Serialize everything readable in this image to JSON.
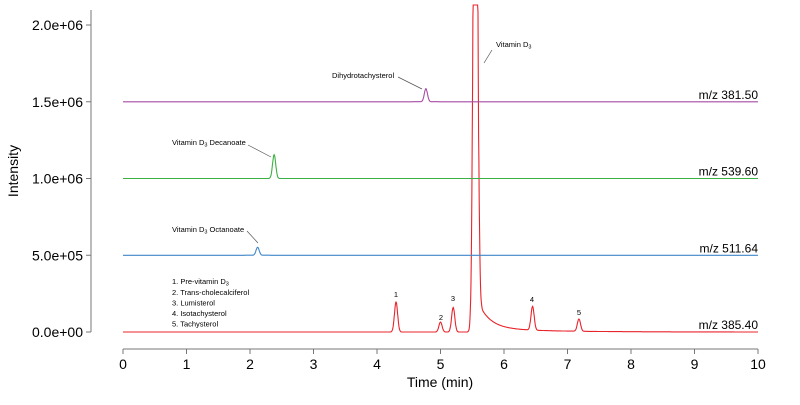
{
  "chart_data": {
    "type": "line",
    "xlabel": "Time (min)",
    "ylabel": "Intensity",
    "xlim": [
      0,
      10
    ],
    "ylim": [
      0,
      2100000
    ],
    "x_ticks": [
      "0",
      "1",
      "2",
      "3",
      "4",
      "5",
      "6",
      "7",
      "8",
      "9",
      "10"
    ],
    "y_ticks": [
      {
        "value": 0,
        "label": "0.0e+00"
      },
      {
        "value": 500000,
        "label": "5.0e+05"
      },
      {
        "value": 1000000,
        "label": "1.0e+06"
      },
      {
        "value": 1500000,
        "label": "1.5e+06"
      },
      {
        "value": 2000000,
        "label": "2.0e+06"
      }
    ],
    "grid": false,
    "series": [
      {
        "name": "m/z 385.40",
        "color": "#e8242b",
        "baseline": 0,
        "peaks": [
          {
            "rt": 4.3,
            "height": 195000,
            "label": "1"
          },
          {
            "rt": 5.0,
            "height": 65000,
            "label": "2"
          },
          {
            "rt": 5.2,
            "height": 160000,
            "label": "3"
          },
          {
            "rt": 5.55,
            "height": 5000000,
            "label": "Vitamin D3",
            "off-scale": true
          },
          {
            "rt": 6.45,
            "height": 155000,
            "label": "4"
          },
          {
            "rt": 7.18,
            "height": 80000,
            "label": "5"
          }
        ]
      },
      {
        "name": "m/z 511.64",
        "color": "#3f86c8",
        "baseline": 500000,
        "peaks": [
          {
            "rt": 2.12,
            "height": 52000,
            "label": "Vitamin D3 Octanoate"
          }
        ]
      },
      {
        "name": "m/z 539.60",
        "color": "#3cb043",
        "baseline": 1000000,
        "peaks": [
          {
            "rt": 2.38,
            "height": 155000,
            "label": "Vitamin D3 Decanoate"
          }
        ]
      },
      {
        "name": "m/z 381.50",
        "color": "#a64ca6",
        "baseline": 1500000,
        "peaks": [
          {
            "rt": 4.77,
            "height": 85000,
            "label": "Dihydrotachysterol"
          }
        ]
      }
    ],
    "annotations": {
      "vitd3": {
        "text": "Vitamin D",
        "sub": "3"
      },
      "dihydro": {
        "text": "Dihydrotachysterol"
      },
      "decanoate": {
        "pre": "Vitamin D",
        "sub": "3",
        "post": " Decanoate"
      },
      "octanoate": {
        "pre": "Vitamin D",
        "sub": "3",
        "post": " Octanoate"
      },
      "peak_numbers": [
        "1",
        "2",
        "3",
        "4",
        "5"
      ]
    },
    "legend_list": [
      {
        "pre": "1. Pre-vitamin D",
        "sub": "3"
      },
      {
        "pre": "2. Trans-cholecalciferol",
        "sub": ""
      },
      {
        "pre": "3. Lumisterol",
        "sub": ""
      },
      {
        "pre": "4. Isotachysterol",
        "sub": ""
      },
      {
        "pre": "5. Tachysterol",
        "sub": ""
      }
    ]
  }
}
